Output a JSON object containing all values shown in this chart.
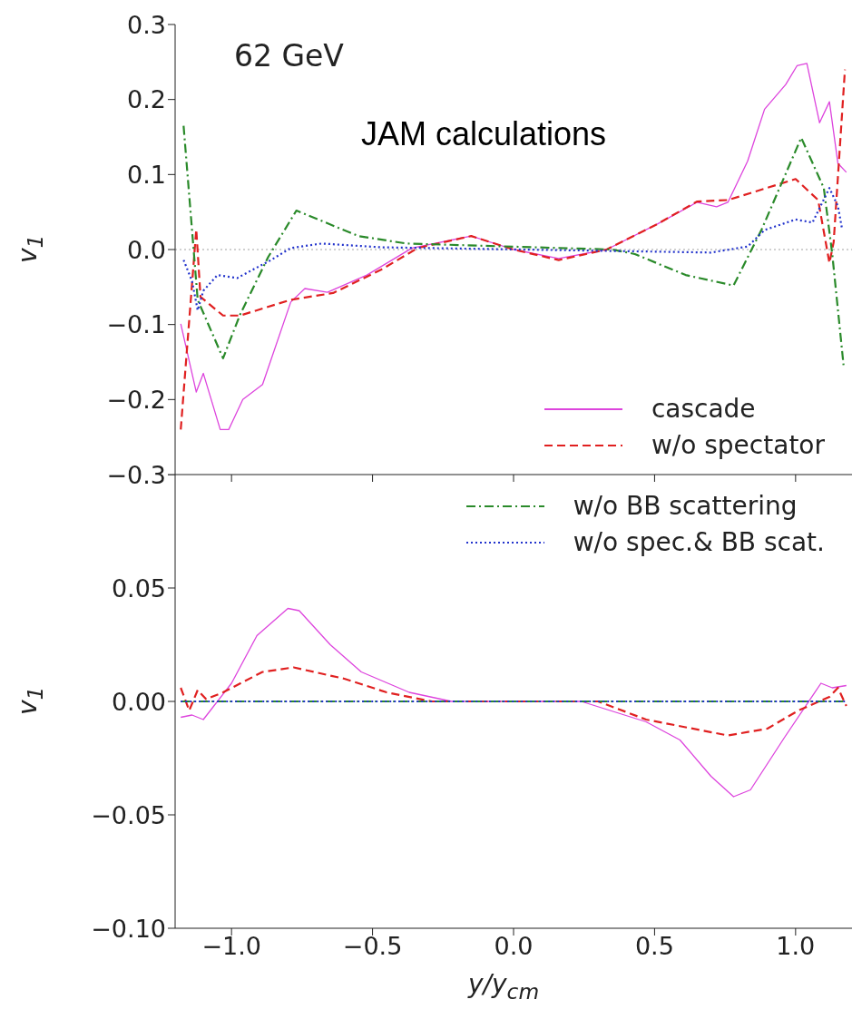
{
  "chart_data": [
    {
      "type": "line",
      "xlim": [
        -1.2,
        1.2
      ],
      "xticks": [
        -1.0,
        -0.5,
        0.0,
        0.5,
        1.0
      ],
      "ylabel": "v$_{1}$",
      "ylim": [
        -0.3,
        0.3
      ],
      "yticks": [
        {
          "value": -0.3,
          "label": "−0.3"
        },
        {
          "value": -0.2,
          "label": "−0.2"
        },
        {
          "value": -0.1,
          "label": "−0.1"
        },
        {
          "value": 0,
          "label": "0.0"
        },
        {
          "value": 0.1,
          "label": "0.1"
        },
        {
          "value": 0.2,
          "label": "0.2"
        },
        {
          "value": 0.3,
          "label": "0.3"
        }
      ],
      "tick_labels": "y",
      "marker": "none",
      "legend": "lower right",
      "annotations": [
        "62 GeV",
        "JAM calculations"
      ],
      "ref_lines": [
        {
          "axis": "y",
          "value": 0,
          "color": "#888888",
          "line_style": "dotted"
        }
      ],
      "series": [
        {
          "name": "cascade",
          "color": "#dd44dd",
          "line_style": "solid",
          "x": [
            -1.18,
            -1.125,
            -1.1,
            -1.04,
            -1.01,
            -0.96,
            -0.89,
            -0.79,
            -0.74,
            -0.66,
            -0.52,
            -0.36,
            -0.15,
            0,
            0.16,
            0.33,
            0.51,
            0.65,
            0.72,
            0.76,
            0.83,
            0.89,
            0.965,
            1.005,
            1.04,
            1.085,
            1.12,
            1.15,
            1.18
          ],
          "values": [
            -0.099,
            -0.19,
            -0.165,
            -0.24,
            -0.24,
            -0.2,
            -0.18,
            -0.07,
            -0.052,
            -0.057,
            -0.034,
            0.002,
            0.018,
            0,
            -0.012,
            0,
            0.034,
            0.063,
            0.057,
            0.063,
            0.118,
            0.187,
            0.22,
            0.245,
            0.248,
            0.169,
            0.197,
            0.115,
            0.103
          ]
        },
        {
          "name": "w/o spectator",
          "color": "#e02020",
          "line_style": "dashed",
          "x": [
            -1.18,
            -1.125,
            -1.11,
            -1.03,
            -0.97,
            -0.79,
            -0.64,
            -0.47,
            -0.34,
            -0.15,
            0,
            0.16,
            0.33,
            0.51,
            0.65,
            0.76,
            1.0,
            1.08,
            1.12,
            1.135,
            1.175
          ],
          "values": [
            -0.24,
            0.027,
            -0.063,
            -0.088,
            -0.088,
            -0.067,
            -0.058,
            -0.027,
            0.002,
            0.018,
            0,
            -0.014,
            0,
            0.034,
            0.064,
            0.066,
            0.094,
            0.066,
            -0.018,
            0.01,
            0.24
          ]
        },
        {
          "color": "#2a8a2a",
          "line_style": "dashdot",
          "x": [
            -1.17,
            -1.12,
            -1.03,
            -0.97,
            -0.87,
            -0.77,
            -0.55,
            -0.38,
            0.35,
            0.43,
            0.61,
            0.78,
            0.88,
            1.02,
            1.1,
            1.13,
            1.17
          ],
          "values": [
            0.165,
            -0.067,
            -0.145,
            -0.087,
            -0.01,
            0.052,
            0.018,
            0.008,
            0,
            -0.006,
            -0.034,
            -0.048,
            0.027,
            0.149,
            0.082,
            -0.006,
            -0.154
          ]
        },
        {
          "color": "#2233cc",
          "line_style": "dotted",
          "x": [
            -1.17,
            -1.14,
            -1.12,
            -1.1,
            -1.05,
            -0.98,
            -0.86,
            -0.79,
            -0.68,
            -0.47,
            0.7,
            0.83,
            0.89,
            1.0,
            1.06,
            1.12,
            1.15,
            1.165
          ],
          "values": [
            -0.014,
            -0.042,
            -0.081,
            -0.055,
            -0.034,
            -0.038,
            -0.014,
            0.002,
            0.008,
            0.003,
            -0.004,
            0.004,
            0.026,
            0.04,
            0.036,
            0.082,
            0.058,
            0.027
          ]
        }
      ]
    },
    {
      "type": "line",
      "xlim": [
        -1.2,
        1.2
      ],
      "xticks": [
        {
          "value": -1.0,
          "label": "−1.0"
        },
        {
          "value": -0.5,
          "label": "−0.5"
        },
        {
          "value": 0.0,
          "label": "0.0"
        },
        {
          "value": 0.5,
          "label": "0.5"
        },
        {
          "value": 1.0,
          "label": "1.0"
        }
      ],
      "xlabel": "y/y$_{cm}$",
      "ylabel": "v$_{1}$",
      "ylim": [
        -0.1,
        0.1
      ],
      "yticks": [
        {
          "value": -0.1,
          "label": "−0.10"
        },
        {
          "value": -0.05,
          "label": "−0.05"
        },
        {
          "value": 0,
          "label": "0.00"
        },
        {
          "value": 0.05,
          "label": "0.05"
        },
        {
          "value": 0.1,
          "label": null
        }
      ],
      "marker": "none",
      "legend": "upper right",
      "series": [
        {
          "color": "#dd44dd",
          "line_style": "solid",
          "x": [
            -1.18,
            -1.14,
            -1.1,
            -1.0,
            -0.91,
            -0.8,
            -0.76,
            -0.65,
            -0.54,
            -0.37,
            -0.22,
            0.24,
            0.47,
            0.59,
            0.7,
            0.78,
            0.84,
            0.96,
            1.09,
            1.13,
            1.18
          ],
          "values": [
            -0.007,
            -0.006,
            -0.008,
            0.008,
            0.029,
            0.041,
            0.04,
            0.025,
            0.013,
            0.004,
            0,
            0,
            -0.009,
            -0.017,
            -0.033,
            -0.042,
            -0.039,
            -0.016,
            0.008,
            0.006,
            0.007
          ]
        },
        {
          "color": "#e02020",
          "line_style": "dashed",
          "x": [
            -1.18,
            -1.15,
            -1.12,
            -1.09,
            -1.03,
            -0.89,
            -0.78,
            -0.6,
            -0.45,
            -0.29,
            0.3,
            0.47,
            0.76,
            0.9,
            1.01,
            1.12,
            1.15,
            1.18
          ],
          "values": [
            0.006,
            -0.004,
            0.005,
            0.001,
            0.004,
            0.013,
            0.015,
            0.01,
            0.004,
            0,
            0,
            -0.008,
            -0.015,
            -0.012,
            -0.004,
            0.002,
            0.006,
            -0.002
          ]
        },
        {
          "name": "w/o BB scattering",
          "color": "#2a8a2a",
          "line_style": "dashdot",
          "x": [
            -1.18,
            1.18
          ],
          "values": [
            0,
            0
          ]
        },
        {
          "name": "w/o spec.& BB scat.",
          "color": "#2233cc",
          "line_style": "dotted",
          "x": [
            -1.18,
            1.18
          ],
          "values": [
            0,
            0
          ]
        }
      ]
    }
  ]
}
